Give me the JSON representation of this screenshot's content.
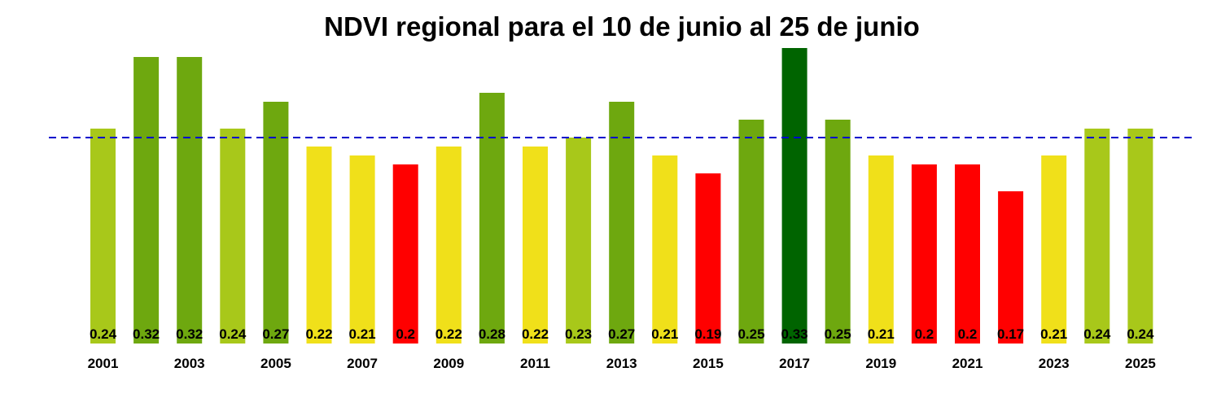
{
  "chart_data": {
    "type": "bar",
    "title": "NDVI regional para el 10 de junio al 25 de junio",
    "categories": [
      "2001",
      "2002",
      "2003",
      "2004",
      "2005",
      "2006",
      "2007",
      "2008",
      "2009",
      "2010",
      "2011",
      "2012",
      "2013",
      "2014",
      "2015",
      "2016",
      "2017",
      "2018",
      "2019",
      "2020",
      "2021",
      "2022",
      "2023",
      "2024",
      "2025"
    ],
    "tick_labels": [
      "2001",
      "",
      "2003",
      "",
      "2005",
      "",
      "2007",
      "",
      "2009",
      "",
      "2011",
      "",
      "2013",
      "",
      "2015",
      "",
      "2017",
      "",
      "2019",
      "",
      "2021",
      "",
      "2023",
      "",
      "2025"
    ],
    "values": [
      0.24,
      0.32,
      0.32,
      0.24,
      0.27,
      0.22,
      0.21,
      0.2,
      0.22,
      0.28,
      0.22,
      0.23,
      0.27,
      0.21,
      0.19,
      0.25,
      0.33,
      0.25,
      0.21,
      0.2,
      0.2,
      0.17,
      0.21,
      0.24,
      0.24
    ],
    "value_labels": [
      "0.24",
      "0.32",
      "0.32",
      "0.24",
      "0.27",
      "0.22",
      "0.21",
      "0.2",
      "0.22",
      "0.28",
      "0.22",
      "0.23",
      "0.27",
      "0.21",
      "0.19",
      "0.25",
      "0.33",
      "0.25",
      "0.21",
      "0.2",
      "0.2",
      "0.17",
      "0.21",
      "0.24",
      "0.24"
    ],
    "bar_colors": [
      "#a8c81a",
      "#6ea80f",
      "#6ea80f",
      "#a8c81a",
      "#6ea80f",
      "#f0e01a",
      "#f0e01a",
      "#ff0000",
      "#f0e01a",
      "#6ea80f",
      "#f0e01a",
      "#a8c81a",
      "#6ea80f",
      "#f0e01a",
      "#ff0000",
      "#6ea80f",
      "#006400",
      "#6ea80f",
      "#f0e01a",
      "#ff0000",
      "#ff0000",
      "#ff0000",
      "#f0e01a",
      "#a8c81a",
      "#a8c81a"
    ],
    "reference_line": {
      "value": 0.23,
      "color": "#0000cc",
      "style": "dashed"
    },
    "ylim": [
      0,
      0.33
    ],
    "grid": false,
    "legend": "none",
    "xlabel": "",
    "ylabel": ""
  }
}
